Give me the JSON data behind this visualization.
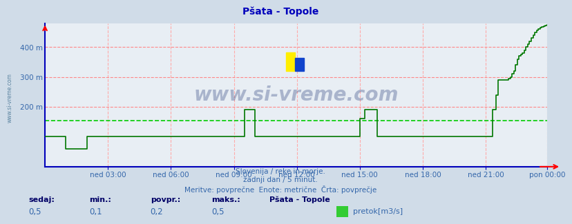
{
  "title": "Pšata - Topole",
  "subtitle_lines": [
    "Slovenija / reke in morje.",
    "zadnji dan / 5 minut.",
    "Meritve: povprečne  Enote: metrične  Črta: povprečje"
  ],
  "xlabel_ticks": [
    "ned 03:00",
    "ned 06:00",
    "ned 09:00",
    "ned 12:00",
    "ned 15:00",
    "ned 18:00",
    "ned 21:00",
    "pon 00:00"
  ],
  "ylabel_values": [
    200,
    300,
    400
  ],
  "ylim": [
    0,
    480
  ],
  "xlim": [
    0,
    287
  ],
  "avg_line_y": 155,
  "avg_line_color": "#00cc00",
  "line_color": "#007700",
  "background_color": "#d0dce8",
  "plot_bg_color": "#e8eef4",
  "grid_h_color": "#ff8888",
  "grid_v_color": "#ffaaaa",
  "axis_color": "#0000bb",
  "title_color": "#0000bb",
  "text_color": "#3366aa",
  "bold_color": "#000066",
  "sedaj_label": "sedaj:",
  "min_label": "min.:",
  "povpr_label": "povpr.:",
  "maks_label": "maks.:",
  "sedaj_val": "0,5",
  "min_val": "0,1",
  "povpr_val": "0,2",
  "maks_val": "0,5",
  "station_label": "Pšata - Topole",
  "legend_label": "pretok[m3/s]",
  "legend_color": "#33cc33",
  "watermark": "www.si-vreme.com",
  "watermark_color": "#1a3070",
  "n_points": 288,
  "tick_positions_x": [
    36,
    72,
    108,
    144,
    180,
    216,
    252,
    287
  ],
  "flow_data_raw": [
    100,
    100,
    100,
    100,
    100,
    100,
    100,
    100,
    100,
    100,
    100,
    100,
    60,
    60,
    60,
    60,
    60,
    60,
    60,
    60,
    60,
    60,
    60,
    60,
    100,
    100,
    100,
    100,
    100,
    100,
    100,
    100,
    100,
    100,
    100,
    100,
    100,
    100,
    100,
    100,
    100,
    100,
    100,
    100,
    100,
    100,
    100,
    100,
    100,
    100,
    100,
    100,
    100,
    100,
    100,
    100,
    100,
    100,
    100,
    100,
    100,
    100,
    100,
    100,
    100,
    100,
    100,
    100,
    100,
    100,
    100,
    100,
    100,
    100,
    100,
    100,
    100,
    100,
    100,
    100,
    100,
    100,
    100,
    100,
    100,
    100,
    100,
    100,
    100,
    100,
    100,
    100,
    100,
    100,
    100,
    100,
    100,
    100,
    100,
    100,
    100,
    100,
    100,
    100,
    100,
    100,
    100,
    100,
    100,
    100,
    100,
    100,
    100,
    100,
    190,
    190,
    190,
    190,
    190,
    190,
    100,
    100,
    100,
    100,
    100,
    100,
    100,
    100,
    100,
    100,
    100,
    100,
    100,
    100,
    100,
    100,
    100,
    100,
    100,
    100,
    100,
    100,
    100,
    100,
    100,
    100,
    100,
    100,
    100,
    100,
    100,
    100,
    100,
    100,
    100,
    100,
    100,
    100,
    100,
    100,
    100,
    100,
    100,
    100,
    100,
    100,
    100,
    100,
    100,
    100,
    100,
    100,
    100,
    100,
    100,
    100,
    100,
    100,
    100,
    100,
    160,
    160,
    160,
    190,
    190,
    190,
    190,
    190,
    190,
    190,
    100,
    100,
    100,
    100,
    100,
    100,
    100,
    100,
    100,
    100,
    100,
    100,
    100,
    100,
    100,
    100,
    100,
    100,
    100,
    100,
    100,
    100,
    100,
    100,
    100,
    100,
    100,
    100,
    100,
    100,
    100,
    100,
    100,
    100,
    100,
    100,
    100,
    100,
    100,
    100,
    100,
    100,
    100,
    100,
    100,
    100,
    100,
    100,
    100,
    100,
    100,
    100,
    100,
    100,
    100,
    100,
    100,
    100,
    100,
    100,
    100,
    100,
    100,
    100,
    100,
    100,
    190,
    190,
    240,
    290,
    290,
    290,
    290,
    290,
    290,
    295,
    300,
    310,
    320,
    340,
    360,
    370,
    375,
    380,
    390,
    400,
    410,
    420,
    430,
    440,
    450,
    455,
    460,
    465,
    468,
    470,
    472,
    475
  ]
}
